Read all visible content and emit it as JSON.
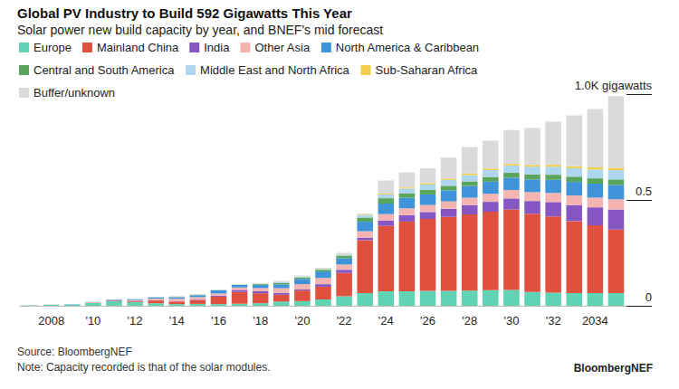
{
  "chart_data": {
    "type": "bar",
    "title": "Global PV Industry to Build 592 Gigawatts This Year",
    "subtitle": "Solar power new build capacity by year, and BNEF's mid forecast",
    "source": "Source: BloombergNEF",
    "note": "Note: Capacity recorded is that of the solar modules.",
    "credit": "BloombergNEF",
    "stacked": true,
    "legend": "top-left",
    "grid": false,
    "categories": [
      null,
      "2008",
      null,
      "'10",
      null,
      "'12",
      null,
      "'14",
      null,
      "'16",
      null,
      "'18",
      null,
      "'20",
      null,
      "'22",
      null,
      "'24",
      null,
      "'26",
      null,
      "'28",
      null,
      "'30",
      null,
      "'32",
      null,
      "2034",
      null
    ],
    "ylim": [
      0,
      1
    ],
    "yticks": [
      0,
      0.5,
      {
        "value": 1,
        "label": "1.0K gigawatts"
      }
    ],
    "series": [
      {
        "name": "Europe",
        "color": "#5fd3b3",
        "values": [
          0.002,
          0.005,
          0.006,
          0.014,
          0.022,
          0.018,
          0.012,
          0.008,
          0.009,
          0.008,
          0.01,
          0.012,
          0.02,
          0.022,
          0.03,
          0.045,
          0.06,
          0.068,
          0.068,
          0.07,
          0.07,
          0.072,
          0.074,
          0.075,
          0.065,
          0.062,
          0.06,
          0.06,
          0.06
        ]
      },
      {
        "name": "Mainland China",
        "color": "#e0503f",
        "values": [
          0,
          0,
          0,
          0.001,
          0.003,
          0.005,
          0.013,
          0.012,
          0.018,
          0.035,
          0.055,
          0.047,
          0.032,
          0.05,
          0.06,
          0.11,
          0.25,
          0.31,
          0.33,
          0.34,
          0.35,
          0.36,
          0.37,
          0.38,
          0.37,
          0.36,
          0.34,
          0.32,
          0.3
        ]
      },
      {
        "name": "India",
        "color": "#8656c2",
        "values": [
          0,
          0,
          0,
          0,
          0.001,
          0.001,
          0.001,
          0.001,
          0.002,
          0.005,
          0.01,
          0.01,
          0.009,
          0.005,
          0.012,
          0.015,
          0.012,
          0.025,
          0.03,
          0.033,
          0.038,
          0.042,
          0.047,
          0.052,
          0.06,
          0.068,
          0.076,
          0.085,
          0.095
        ]
      },
      {
        "name": "Other Asia",
        "color": "#f4b4b2",
        "values": [
          0.001,
          0.001,
          0.001,
          0.002,
          0.002,
          0.003,
          0.008,
          0.012,
          0.012,
          0.01,
          0.012,
          0.015,
          0.022,
          0.025,
          0.03,
          0.025,
          0.03,
          0.03,
          0.032,
          0.033,
          0.035,
          0.037,
          0.038,
          0.04,
          0.042,
          0.043,
          0.045,
          0.046,
          0.048
        ]
      },
      {
        "name": "North America & Caribbean",
        "color": "#3f94d9",
        "values": [
          0,
          0,
          0.001,
          0.001,
          0.002,
          0.004,
          0.006,
          0.008,
          0.009,
          0.015,
          0.011,
          0.014,
          0.018,
          0.025,
          0.03,
          0.03,
          0.045,
          0.05,
          0.05,
          0.05,
          0.052,
          0.055,
          0.057,
          0.058,
          0.06,
          0.062,
          0.064,
          0.066,
          0.068
        ]
      },
      {
        "name": "Central and South America",
        "color": "#5aa55c",
        "values": [
          0,
          0,
          0,
          0,
          0,
          0,
          0,
          0,
          0.001,
          0.001,
          0.001,
          0.004,
          0.006,
          0.007,
          0.008,
          0.012,
          0.02,
          0.025,
          0.022,
          0.022,
          0.022,
          0.022,
          0.023,
          0.023,
          0.024,
          0.024,
          0.025,
          0.025,
          0.026
        ]
      },
      {
        "name": "Middle East and North Africa",
        "color": "#aed7ef",
        "values": [
          0,
          0,
          0,
          0,
          0,
          0,
          0,
          0.001,
          0.001,
          0.001,
          0.001,
          0.002,
          0.005,
          0.004,
          0.004,
          0.005,
          0.01,
          0.018,
          0.022,
          0.025,
          0.028,
          0.03,
          0.032,
          0.034,
          0.036,
          0.038,
          0.04,
          0.042,
          0.044
        ]
      },
      {
        "name": "Sub-Saharan Africa",
        "color": "#f2cf4a",
        "values": [
          0,
          0,
          0,
          0,
          0,
          0,
          0,
          0.001,
          0.001,
          0,
          0,
          0.001,
          0.001,
          0.001,
          0.001,
          0.001,
          0.003,
          0.004,
          0.005,
          0.006,
          0.006,
          0.007,
          0.007,
          0.008,
          0.008,
          0.009,
          0.009,
          0.01,
          0.01
        ]
      },
      {
        "name": "Buffer/unknown",
        "color": "#dadada",
        "values": [
          0,
          0,
          0,
          0,
          0,
          0,
          0,
          0.003,
          0.003,
          0.001,
          0,
          0.003,
          0.005,
          0.004,
          0.005,
          0.007,
          0.006,
          0.062,
          0.071,
          0.071,
          0.099,
          0.125,
          0.132,
          0.16,
          0.175,
          0.204,
          0.241,
          0.276,
          0.339
        ]
      }
    ]
  }
}
